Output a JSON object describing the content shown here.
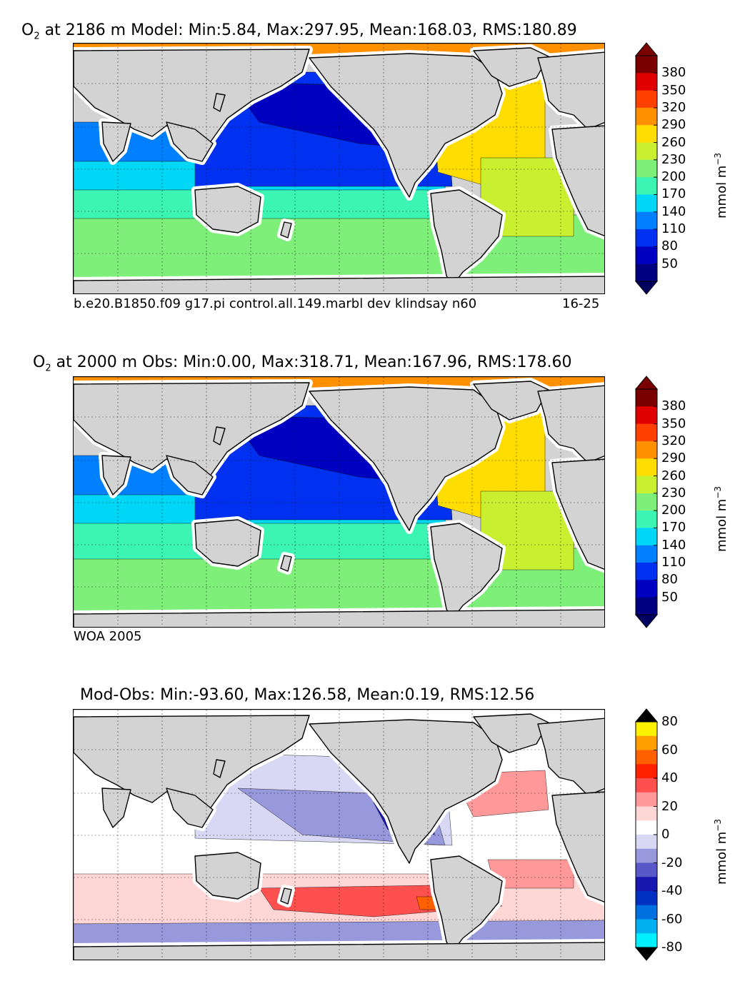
{
  "figure": {
    "panels": [
      {
        "title_prefix": "O",
        "title_sub": "2",
        "title_rest": " at 2186 m Model: Min:5.84, Max:297.95, Mean:168.03, RMS:180.89",
        "caption_left": "b.e20.B1850.f09 g17.pi control.all.149.marbl dev klindsay n60",
        "caption_right": "16-25"
      },
      {
        "title_prefix": "O",
        "title_sub": "2",
        "title_rest": " at 2000 m Obs: Min:0.00, Max:318.71, Mean:167.96, RMS:178.60",
        "caption_left": "WOA 2005",
        "caption_right": ""
      },
      {
        "title_prefix": "",
        "title_sub": "",
        "title_rest": "Mod-Obs: Min:-93.60, Max:126.58, Mean:0.19, RMS:12.56",
        "caption_left": "",
        "caption_right": ""
      }
    ],
    "colorbars": [
      {
        "unit": "mmol m",
        "unit_sup": "−3",
        "ticks": [
          "380",
          "350",
          "320",
          "290",
          "260",
          "230",
          "200",
          "170",
          "140",
          "110",
          "80",
          "50"
        ],
        "colors": [
          "#7a0000",
          "#e00000",
          "#ff4000",
          "#ff9000",
          "#ffdd00",
          "#c8f030",
          "#7ef07a",
          "#3cf4b4",
          "#00d6f6",
          "#0080ff",
          "#0030f0",
          "#0000c0",
          "#000080"
        ],
        "ext_top": "#7a0000",
        "ext_bottom": "#000060"
      },
      {
        "unit": "mmol m",
        "unit_sup": "−3",
        "ticks": [
          "380",
          "350",
          "320",
          "290",
          "260",
          "230",
          "200",
          "170",
          "140",
          "110",
          "80",
          "50"
        ],
        "colors": [
          "#7a0000",
          "#e00000",
          "#ff4000",
          "#ff9000",
          "#ffdd00",
          "#c8f030",
          "#7ef07a",
          "#3cf4b4",
          "#00d6f6",
          "#0080ff",
          "#0030f0",
          "#0000c0",
          "#000080"
        ],
        "ext_top": "#7a0000",
        "ext_bottom": "#000060"
      },
      {
        "unit": "mmol m",
        "unit_sup": "−3",
        "ticks": [
          "80",
          "60",
          "40",
          "20",
          "0",
          "-20",
          "-40",
          "-60",
          "-80"
        ],
        "colors": [
          "#fff200",
          "#ffa000",
          "#ff6000",
          "#ff2000",
          "#ff5050",
          "#ff9898",
          "#ffd6d6",
          "#ffffff",
          "#d8d8f4",
          "#9898dc",
          "#5858c8",
          "#1818b0",
          "#0030c0",
          "#0070e0",
          "#00b0f0",
          "#00f0ff"
        ],
        "ext_top": "#000000",
        "ext_bottom": "#000000"
      }
    ]
  },
  "chart_data": [
    {
      "type": "heatmap",
      "title": "O2 at 2186 m Model: Min:5.84, Max:297.95, Mean:168.03, RMS:180.89",
      "variable": "O2",
      "depth_m": 2186,
      "stats": {
        "min": 5.84,
        "max": 297.95,
        "mean": 168.03,
        "rms": 180.89
      },
      "colorbar_levels": [
        50,
        80,
        110,
        140,
        170,
        200,
        230,
        260,
        290,
        320,
        350,
        380
      ],
      "units": "mmol m^-3",
      "regions": {
        "North Pacific": 80,
        "Tropical Pacific": 110,
        "South Pacific": 170,
        "Southern Ocean": 200,
        "North Atlantic": 260,
        "South Atlantic": 230,
        "Indian Ocean": 140,
        "Arctic": 290
      }
    },
    {
      "type": "heatmap",
      "title": "O2 at 2000 m Obs: Min:0.00, Max:318.71, Mean:167.96, RMS:178.60",
      "variable": "O2",
      "depth_m": 2000,
      "stats": {
        "min": 0.0,
        "max": 318.71,
        "mean": 167.96,
        "rms": 178.6
      },
      "colorbar_levels": [
        50,
        80,
        110,
        140,
        170,
        200,
        230,
        260,
        290,
        320,
        350,
        380
      ],
      "units": "mmol m^-3",
      "regions": {
        "North Pacific": 80,
        "Tropical Pacific": 110,
        "South Pacific": 170,
        "Southern Ocean": 200,
        "North Atlantic": 260,
        "South Atlantic": 230,
        "Indian Ocean": 140,
        "Arctic": 290
      }
    },
    {
      "type": "heatmap",
      "title": "Mod-Obs: Min:-93.60, Max:126.58, Mean:0.19, RMS:12.56",
      "stats": {
        "min": -93.6,
        "max": 126.58,
        "mean": 0.19,
        "rms": 12.56
      },
      "colorbar_levels": [
        -80,
        -60,
        -40,
        -20,
        0,
        20,
        40,
        60,
        80
      ],
      "units": "mmol m^-3",
      "regions": {
        "North Pacific": -5,
        "Tropical East Pacific": -30,
        "Southern Ocean": 25,
        "North Atlantic": 15,
        "Indian Ocean": 5
      }
    }
  ]
}
